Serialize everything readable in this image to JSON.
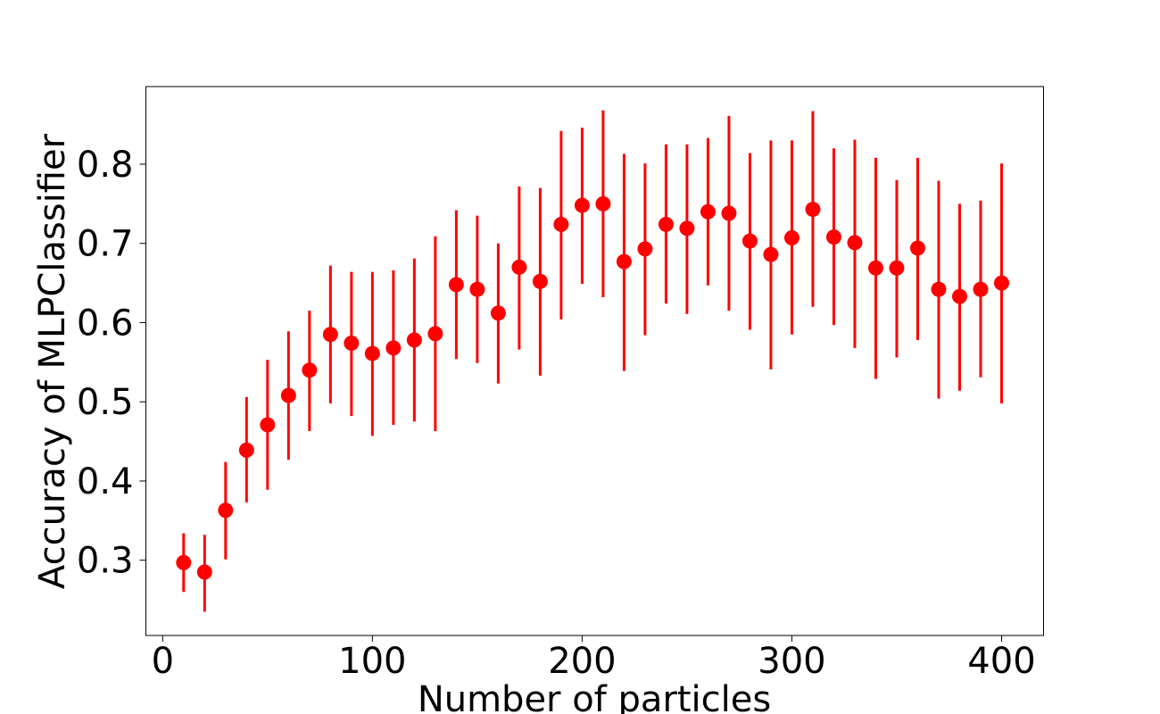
{
  "chart_data": {
    "type": "scatter",
    "title": "",
    "xlabel": "Number of particles",
    "ylabel": "Accuracy of MLPClassifier",
    "xlim": [
      -8,
      420
    ],
    "ylim": [
      0.205,
      0.898
    ],
    "xticks": [
      0,
      100,
      200,
      300,
      400
    ],
    "yticks": [
      0.3,
      0.4,
      0.5,
      0.6,
      0.7,
      0.8
    ],
    "xtick_labels": [
      "0",
      "100",
      "200",
      "300",
      "400"
    ],
    "ytick_labels": [
      "0.3",
      "0.4",
      "0.5",
      "0.6",
      "0.7",
      "0.8"
    ],
    "grid": false,
    "legend": false,
    "color": "#ff0000",
    "series": [
      {
        "marker": "circle",
        "error_bars": true,
        "x": [
          10,
          20,
          30,
          40,
          50,
          60,
          70,
          80,
          90,
          100,
          110,
          120,
          130,
          140,
          150,
          160,
          170,
          180,
          190,
          200,
          210,
          220,
          230,
          240,
          250,
          260,
          270,
          280,
          290,
          300,
          310,
          320,
          330,
          340,
          350,
          360,
          370,
          380,
          390,
          400
        ],
        "y": [
          0.297,
          0.285,
          0.363,
          0.439,
          0.471,
          0.508,
          0.54,
          0.585,
          0.574,
          0.561,
          0.568,
          0.578,
          0.586,
          0.648,
          0.642,
          0.612,
          0.67,
          0.652,
          0.724,
          0.748,
          0.75,
          0.677,
          0.693,
          0.724,
          0.719,
          0.74,
          0.738,
          0.703,
          0.686,
          0.707,
          0.743,
          0.708,
          0.701,
          0.669,
          0.669,
          0.694,
          0.642,
          0.633,
          0.642,
          0.65
        ],
        "y_low": [
          0.26,
          0.235,
          0.301,
          0.373,
          0.389,
          0.427,
          0.463,
          0.498,
          0.482,
          0.457,
          0.471,
          0.475,
          0.463,
          0.554,
          0.549,
          0.523,
          0.566,
          0.533,
          0.604,
          0.649,
          0.632,
          0.539,
          0.584,
          0.624,
          0.611,
          0.647,
          0.615,
          0.591,
          0.541,
          0.585,
          0.62,
          0.597,
          0.568,
          0.529,
          0.556,
          0.578,
          0.504,
          0.514,
          0.531,
          0.498
        ],
        "y_high": [
          0.334,
          0.332,
          0.424,
          0.506,
          0.553,
          0.589,
          0.615,
          0.672,
          0.664,
          0.664,
          0.666,
          0.681,
          0.709,
          0.742,
          0.735,
          0.7,
          0.772,
          0.77,
          0.842,
          0.846,
          0.868,
          0.813,
          0.801,
          0.825,
          0.825,
          0.833,
          0.861,
          0.814,
          0.83,
          0.83,
          0.867,
          0.82,
          0.831,
          0.808,
          0.78,
          0.808,
          0.779,
          0.75,
          0.754,
          0.801
        ]
      }
    ]
  }
}
